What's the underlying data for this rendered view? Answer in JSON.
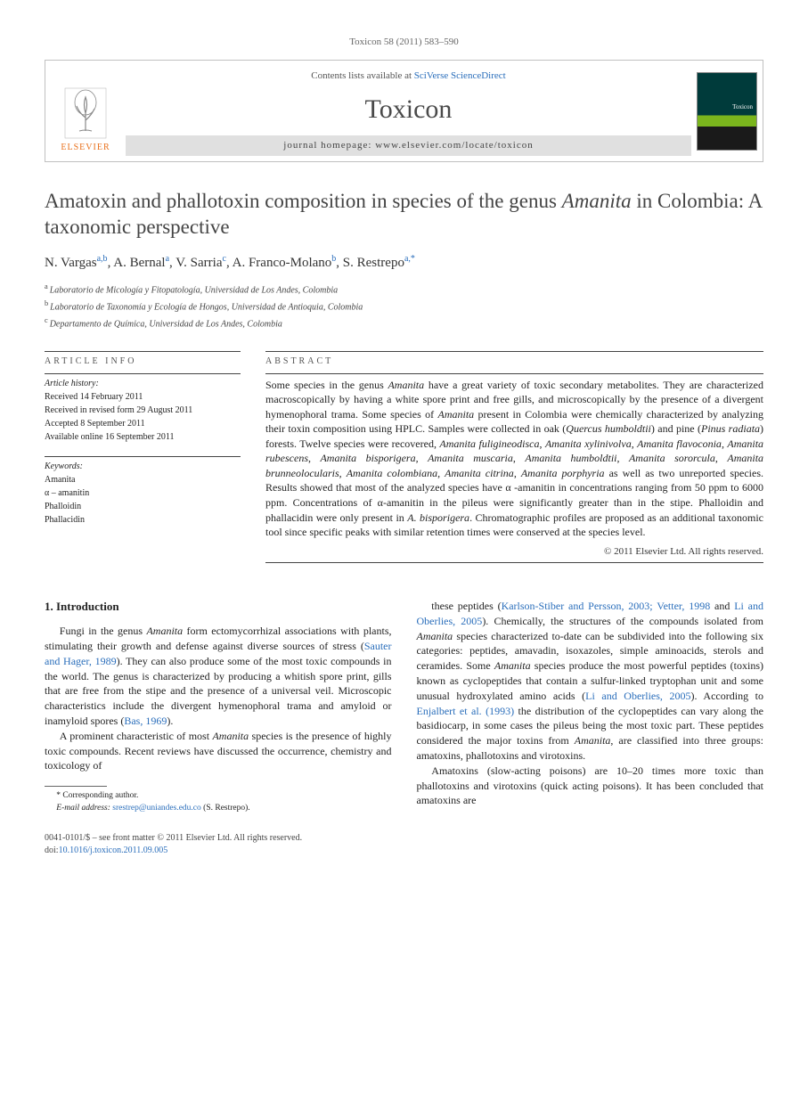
{
  "journal_ref": "Toxicon 58 (2011) 583–590",
  "header": {
    "contents_prefix": "Contents lists available at ",
    "contents_link": "SciVerse ScienceDirect",
    "journal_name": "Toxicon",
    "homepage_prefix": "journal homepage: ",
    "homepage_url": "www.elsevier.com/locate/toxicon",
    "publisher_logo_text": "ELSEVIER"
  },
  "title_parts": {
    "p1": "Amatoxin and phallotoxin composition in species of the genus ",
    "italic": "Amanita",
    "p2": " in Colombia: A taxonomic perspective"
  },
  "authors": [
    {
      "name": "N. Vargas",
      "sup": "a,b"
    },
    {
      "name": "A. Bernal",
      "sup": "a"
    },
    {
      "name": "V. Sarria",
      "sup": "c"
    },
    {
      "name": "A. Franco-Molano",
      "sup": "b"
    },
    {
      "name": "S. Restrepo",
      "sup": "a,*"
    }
  ],
  "affiliations": [
    {
      "key": "a",
      "text": "Laboratorio de Micología y Fitopatología, Universidad de Los Andes, Colombia"
    },
    {
      "key": "b",
      "text": "Laboratorio de Taxonomía y Ecología de Hongos, Universidad de Antioquia, Colombia"
    },
    {
      "key": "c",
      "text": "Departamento de Química, Universidad de Los Andes, Colombia"
    }
  ],
  "info_head": "article info",
  "abstract_head": "abstract",
  "history": {
    "label": "Article history:",
    "lines": [
      "Received 14 February 2011",
      "Received in revised form 29 August 2011",
      "Accepted 8 September 2011",
      "Available online 16 September 2011"
    ]
  },
  "keywords": {
    "label": "Keywords:",
    "items": [
      "Amanita",
      "α – amanitin",
      "Phalloidin",
      "Phallacidin"
    ]
  },
  "abstract": "Some species in the genus Amanita have a great variety of toxic secondary metabolites. They are characterized macroscopically by having a white spore print and free gills, and microscopically by the presence of a divergent hymenophoral trama. Some species of Amanita present in Colombia were chemically characterized by analyzing their toxin composition using HPLC. Samples were collected in oak (Quercus humboldtii) and pine (Pinus radiata) forests. Twelve species were recovered, Amanita fuligineodisca, Amanita xylinivolva, Amanita flavoconia, Amanita rubescens, Amanita bisporigera, Amanita muscaria, Amanita humboldtii, Amanita sororcula, Amanita brunneolocularis, Amanita colombiana, Amanita citrina, Amanita porphyria as well as two unreported species. Results showed that most of the analyzed species have α -amanitin in concentrations ranging from 50 ppm to 6000 ppm. Concentrations of α-amanitin in the pileus were significantly greater than in the stipe. Phalloidin and phallacidin were only present in A. bisporigera. Chromatographic profiles are proposed as an additional taxonomic tool since specific peaks with similar retention times were conserved at the species level.",
  "copyright": "© 2011 Elsevier Ltd. All rights reserved.",
  "intro_heading": "1. Introduction",
  "intro_p1_a": "Fungi in the genus ",
  "intro_p1_b": " form ectomycorrhizal associations with plants, stimulating their growth and defense against diverse sources of stress (",
  "intro_p1_ref1": "Sauter and Hager, 1989",
  "intro_p1_c": "). They can also produce some of the most toxic compounds in the world. The genus is characterized by producing a whitish spore print, gills that are free from the stipe and the presence of a universal veil. Microscopic characteristics include the divergent hymenophoral trama and amyloid or inamyloid spores (",
  "intro_p1_ref2": "Bas, 1969",
  "intro_p1_d": ").",
  "intro_p2_a": "A prominent characteristic of most ",
  "intro_p2_b": " species is the presence of highly toxic compounds. Recent reviews have discussed the occurrence, chemistry and toxicology of",
  "col2_p1_a": "these peptides (",
  "col2_p1_ref1": "Karlson-Stiber and Persson, 2003; Vetter, 1998",
  "col2_p1_b": " and ",
  "col2_p1_ref2": "Li and Oberlies, 2005",
  "col2_p1_c": "). Chemically, the structures of the compounds isolated from ",
  "col2_p1_d": " species characterized to-date can be subdivided into the following six categories: peptides, amavadin, isoxazoles, simple aminoacids, sterols and ceramides. Some ",
  "col2_p1_e": " species produce the most powerful peptides (toxins) known as cyclopeptides that contain a sulfur-linked tryptophan unit and some unusual hydroxylated amino acids (",
  "col2_p1_ref3": "Li and Oberlies, 2005",
  "col2_p1_f": "). According to ",
  "col2_p1_ref4": "Enjalbert et al. (1993)",
  "col2_p1_g": " the distribution of the cyclopeptides can vary along the basidiocarp, in some cases the pileus being the most toxic part. These peptides considered the major toxins from ",
  "col2_p1_h": ", are classified into three groups: amatoxins, phallotoxins and virotoxins.",
  "col2_p2": "Amatoxins (slow-acting poisons) are 10–20 times more toxic than phallotoxins and virotoxins (quick acting poisons). It has been concluded that amatoxins are",
  "footnote_corresp": "* Corresponding author.",
  "footnote_email_label": "E-mail address: ",
  "footnote_email": "srestrep@uniandes.edu.co",
  "footnote_email_tail": " (S. Restrepo).",
  "footer_line1": "0041-0101/$ – see front matter © 2011 Elsevier Ltd. All rights reserved.",
  "footer_doi_label": "doi:",
  "footer_doi": "10.1016/j.toxicon.2011.09.005",
  "colors": {
    "link": "#2a6ebb",
    "elsevier_orange": "#e9711c",
    "rule": "#444444",
    "header_border": "#c0c0c0",
    "homepage_bg": "#e0e0e0"
  }
}
